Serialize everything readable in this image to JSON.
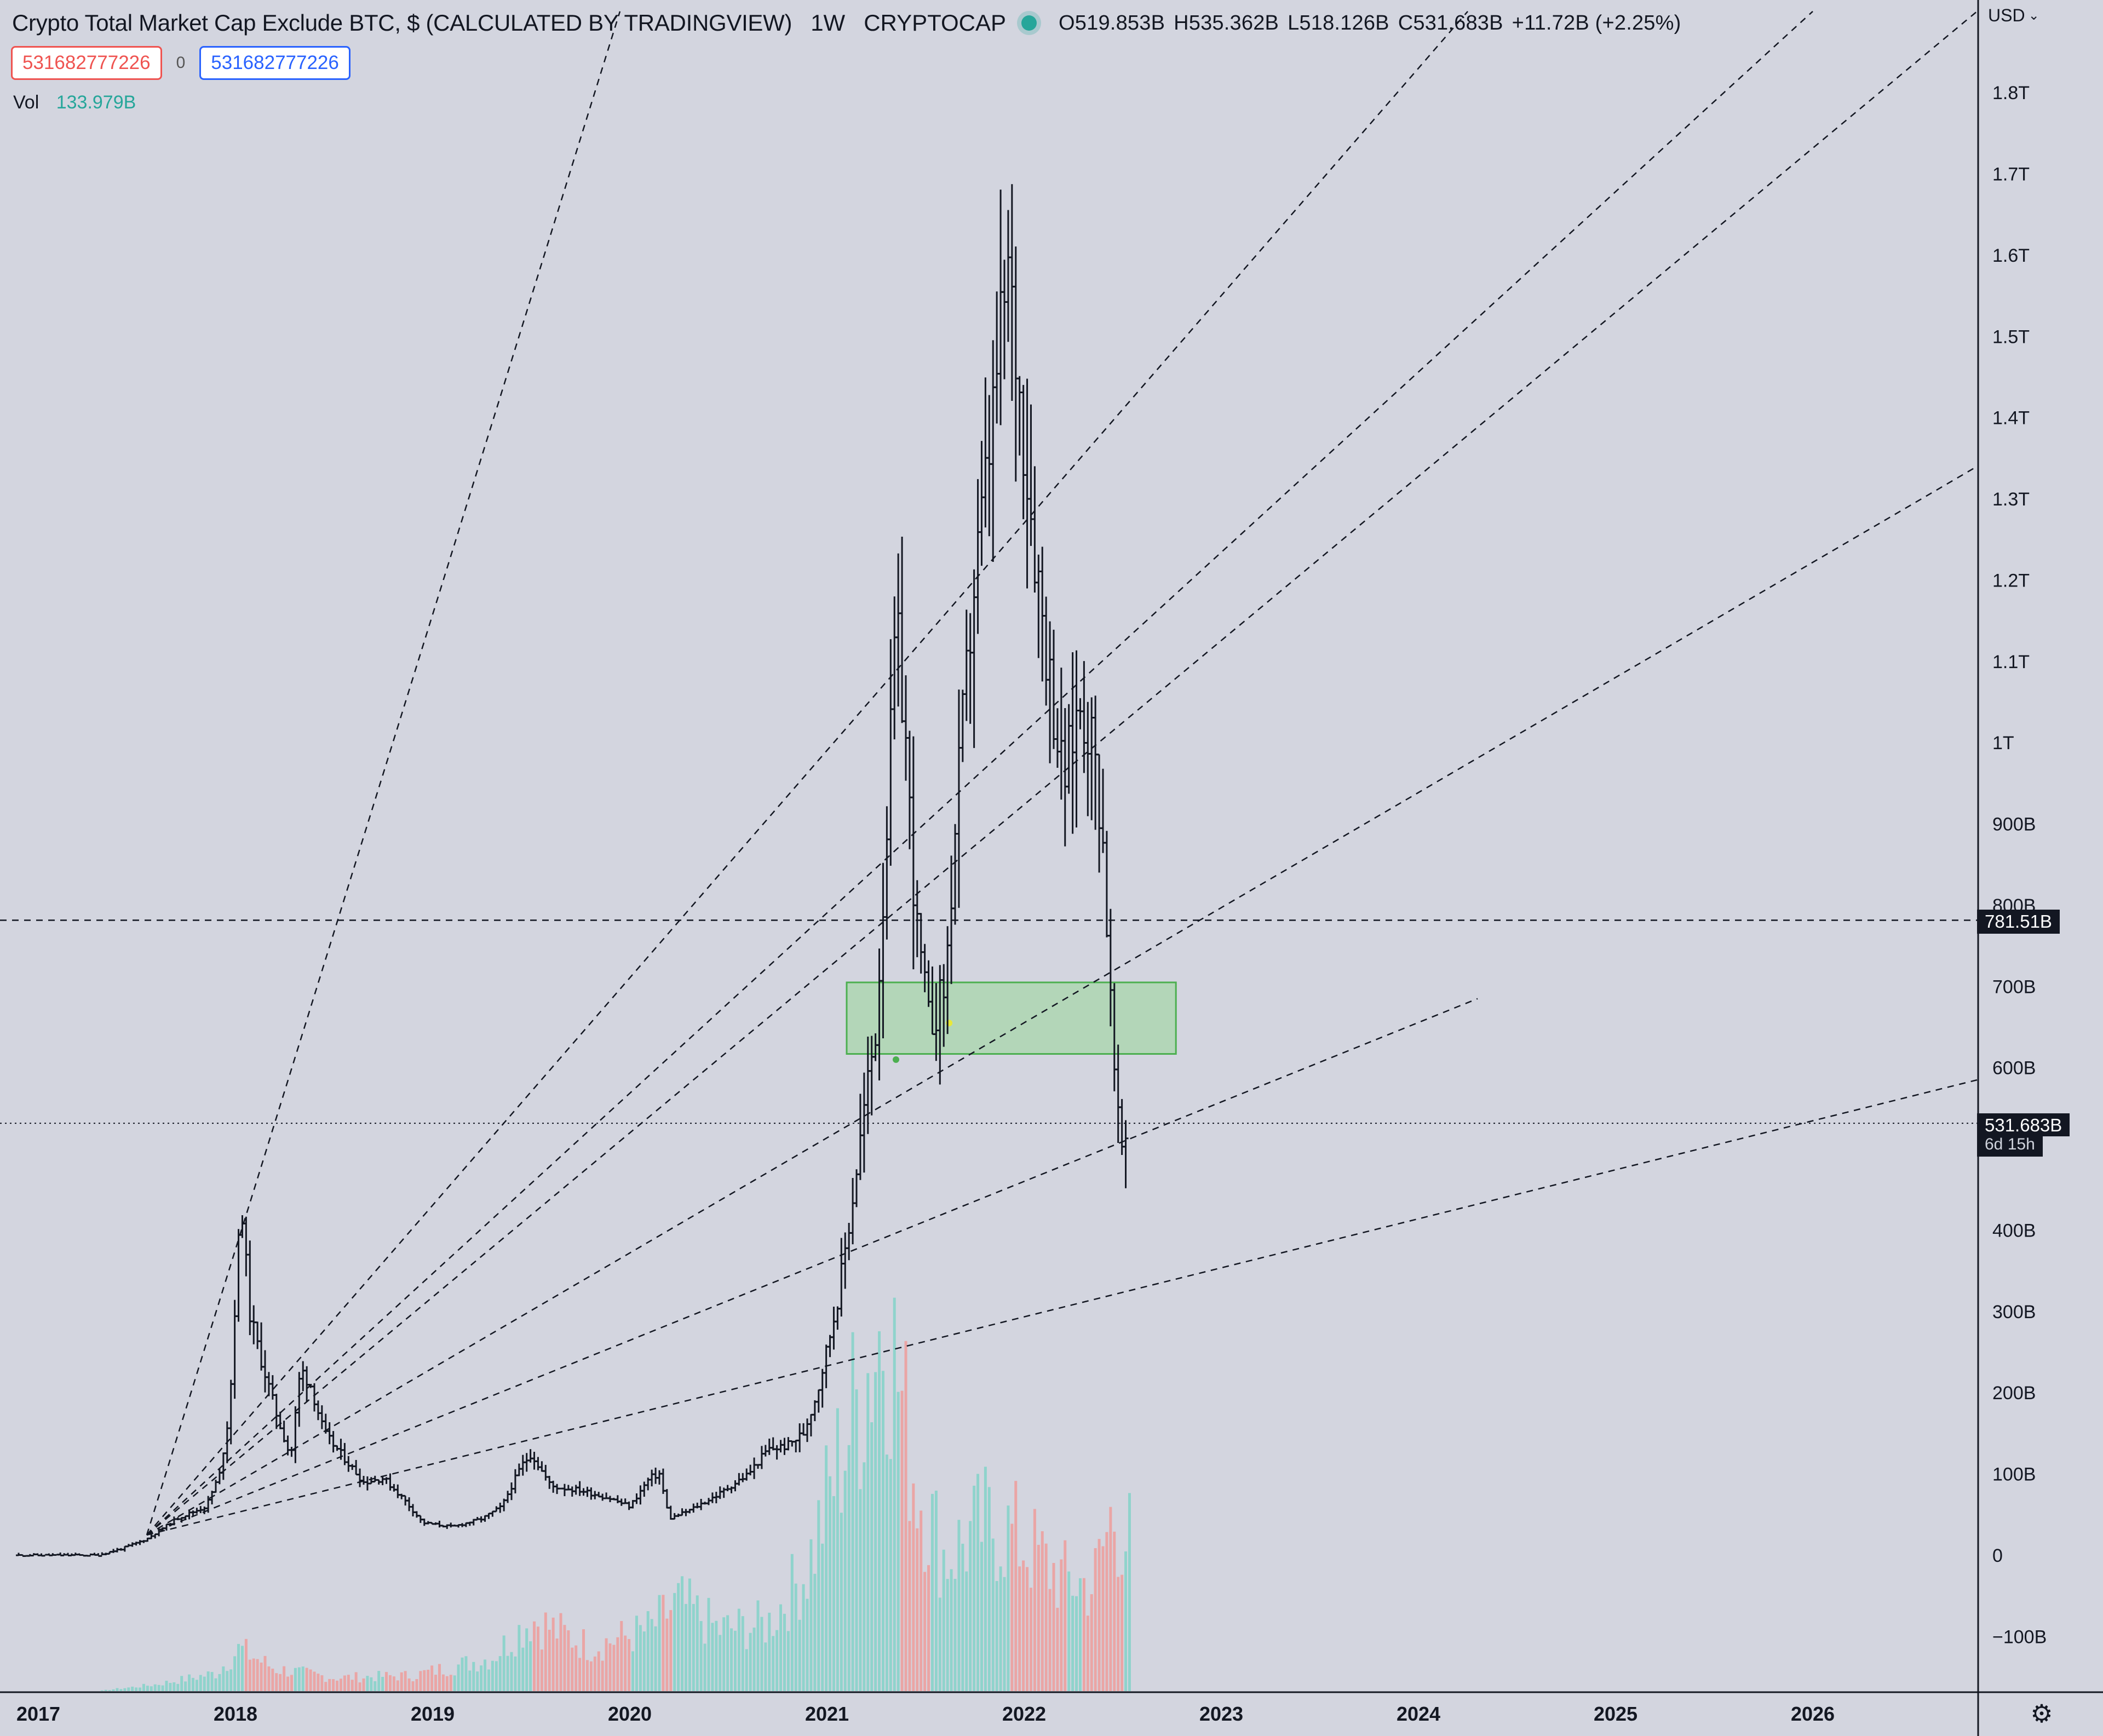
{
  "header": {
    "title": "Crypto Total Market Cap Exclude BTC, $ (CALCULATED BY TRADINGVIEW)",
    "interval": "1W",
    "exchange": "CRYPTOCAP",
    "open": "O519.853B",
    "high": "H535.362B",
    "low": "L518.126B",
    "close": "C531.683B",
    "change": "+11.72B (+2.25%)"
  },
  "value_boxes": {
    "left": "531682777226",
    "middle": "0",
    "right": "531682777226"
  },
  "volume": {
    "label": "Vol",
    "value": "133.979B"
  },
  "axis": {
    "currency": "USD"
  },
  "tags": {
    "level": "781.51B",
    "last_price": "531.683B",
    "countdown": "6d 15h"
  },
  "colors": {
    "background": "#d3d5df",
    "candle": "#131722",
    "volume_up": "#26a69a",
    "volume_down": "#ef5350",
    "zone_fill": "#a5d6a7",
    "zone_border": "#4caf50",
    "accent": "#2962ff"
  },
  "icons": {
    "settings": "gear-icon",
    "live": "status-dot-icon",
    "dropdown": "chevron-down-icon"
  },
  "chart_data": {
    "type": "candlestick",
    "interval": "1W",
    "y_unit": "USD (billions)",
    "ylim": [
      -140,
      1880
    ],
    "y_ticks": [
      -100,
      0,
      100,
      200,
      300,
      400,
      500,
      600,
      700,
      800,
      900,
      1000,
      1100,
      1200,
      1300,
      1400,
      1500,
      1600,
      1700,
      1800
    ],
    "y_tick_labels": [
      "−100B",
      "0",
      "100B",
      "200B",
      "300B",
      "400B",
      "500B",
      "600B",
      "700B",
      "800B",
      "900B",
      "1T",
      "1.1T",
      "1.2T",
      "1.3T",
      "1.4T",
      "1.5T",
      "1.6T",
      "1.7T",
      "1.8T"
    ],
    "x_tick_labels": [
      "2017",
      "2018",
      "2019",
      "2020",
      "2021",
      "2022",
      "2023",
      "2024",
      "2025",
      "2026"
    ],
    "x_tick_years": [
      2017,
      2018,
      2019,
      2020,
      2021,
      2022,
      2023,
      2024,
      2025,
      2026
    ],
    "xlim": [
      2016.9,
      2026.95
    ],
    "price_path": [
      [
        2016.9,
        0
      ],
      [
        2017.3,
        0
      ],
      [
        2017.42,
        8
      ],
      [
        2017.55,
        20
      ],
      [
        2017.7,
        45
      ],
      [
        2017.85,
        60
      ],
      [
        2017.92,
        100
      ],
      [
        2017.97,
        180
      ],
      [
        2018.0,
        320
      ],
      [
        2018.03,
        440
      ],
      [
        2018.07,
        300
      ],
      [
        2018.12,
        250
      ],
      [
        2018.2,
        180
      ],
      [
        2018.28,
        120
      ],
      [
        2018.33,
        230
      ],
      [
        2018.38,
        210
      ],
      [
        2018.45,
        150
      ],
      [
        2018.55,
        120
      ],
      [
        2018.65,
        90
      ],
      [
        2018.75,
        95
      ],
      [
        2018.85,
        70
      ],
      [
        2018.95,
        40
      ],
      [
        2019.1,
        35
      ],
      [
        2019.25,
        45
      ],
      [
        2019.35,
        60
      ],
      [
        2019.45,
        110
      ],
      [
        2019.5,
        125
      ],
      [
        2019.6,
        85
      ],
      [
        2019.75,
        80
      ],
      [
        2019.9,
        70
      ],
      [
        2020.0,
        60
      ],
      [
        2020.1,
        95
      ],
      [
        2020.15,
        100
      ],
      [
        2020.2,
        45
      ],
      [
        2020.3,
        55
      ],
      [
        2020.45,
        75
      ],
      [
        2020.6,
        100
      ],
      [
        2020.7,
        130
      ],
      [
        2020.8,
        135
      ],
      [
        2020.88,
        150
      ],
      [
        2020.95,
        200
      ],
      [
        2021.05,
        310
      ],
      [
        2021.12,
        420
      ],
      [
        2021.2,
        570
      ],
      [
        2021.25,
        650
      ],
      [
        2021.3,
        880
      ],
      [
        2021.35,
        1150
      ],
      [
        2021.4,
        1000
      ],
      [
        2021.45,
        780
      ],
      [
        2021.52,
        650
      ],
      [
        2021.6,
        700
      ],
      [
        2021.68,
        1000
      ],
      [
        2021.75,
        1200
      ],
      [
        2021.82,
        1350
      ],
      [
        2021.88,
        1500
      ],
      [
        2021.92,
        1580
      ],
      [
        2021.98,
        1420
      ],
      [
        2022.05,
        1250
      ],
      [
        2022.12,
        1100
      ],
      [
        2022.2,
        950
      ],
      [
        2022.28,
        1050
      ],
      [
        2022.35,
        1000
      ],
      [
        2022.4,
        880
      ],
      [
        2022.45,
        620
      ],
      [
        2022.48,
        520
      ],
      [
        2022.5,
        500
      ],
      [
        2022.53,
        531.68
      ]
    ],
    "volume_path": [
      [
        2016.9,
        0
      ],
      [
        2017.3,
        0
      ],
      [
        2017.6,
        6
      ],
      [
        2017.9,
        16
      ],
      [
        2018.02,
        38
      ],
      [
        2018.2,
        20
      ],
      [
        2018.5,
        12
      ],
      [
        2018.9,
        14
      ],
      [
        2019.3,
        30
      ],
      [
        2019.5,
        65
      ],
      [
        2019.8,
        40
      ],
      [
        2020.1,
        55
      ],
      [
        2020.25,
        80
      ],
      [
        2020.45,
        55
      ],
      [
        2020.7,
        60
      ],
      [
        2020.9,
        110
      ],
      [
        2021.1,
        230
      ],
      [
        2021.3,
        340
      ],
      [
        2021.45,
        190
      ],
      [
        2021.6,
        120
      ],
      [
        2021.8,
        150
      ],
      [
        2021.95,
        140
      ],
      [
        2022.2,
        100
      ],
      [
        2022.35,
        95
      ],
      [
        2022.45,
        160
      ],
      [
        2022.53,
        134
      ]
    ],
    "volume_scale_ref": 350,
    "current_price": 531.683,
    "horizontal_level": 781.51,
    "zone": {
      "x_start": 2021.1,
      "x_end": 2022.77,
      "y_low": 617,
      "y_high": 705
    },
    "fan_origin": [
      2017.55,
      25
    ],
    "fan_lines": [
      {
        "end": [
          2019.95,
          1900
        ]
      },
      {
        "end": [
          2024.25,
          1900
        ]
      },
      {
        "end": [
          2026.0,
          1900
        ]
      },
      {
        "end": [
          2026.95,
          1900
        ]
      },
      {
        "end": [
          2026.95,
          1340
        ]
      },
      {
        "end": [
          2024.3,
          685
        ]
      },
      {
        "end": [
          2026.95,
          585
        ]
      }
    ],
    "zone_markers": [
      {
        "x": 2021.35,
        "y": 610,
        "color": "#4caf50"
      },
      {
        "x": 2021.62,
        "y": 655,
        "color": "#e8e83a"
      }
    ]
  }
}
